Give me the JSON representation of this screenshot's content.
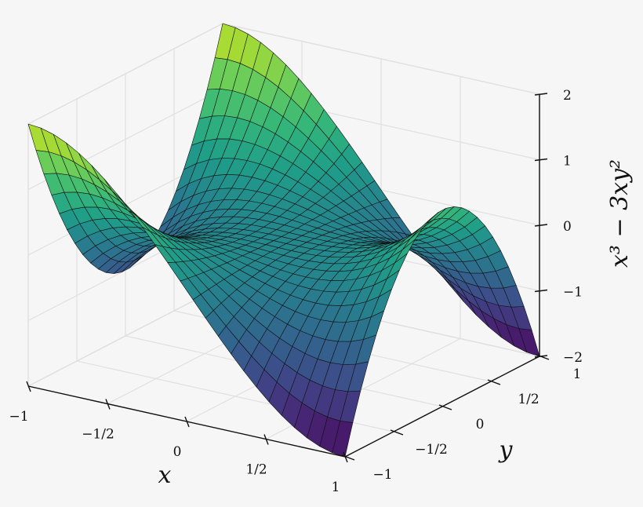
{
  "chart_data": {
    "type": "surface",
    "function": "z = x^3 - 3*x*y^2",
    "x": {
      "min": -1,
      "max": 1,
      "samples": 26
    },
    "y": {
      "min": -1,
      "max": 1,
      "samples": 26
    },
    "zlim": [
      -2,
      2
    ],
    "colormap": "viridis",
    "grid": true,
    "xlabel": "x",
    "ylabel": "y",
    "zlabel": "x³ − 3xy²",
    "x_ticks": [
      {
        "value": -1,
        "label": "−1"
      },
      {
        "value": -0.5,
        "label": "−1/2"
      },
      {
        "value": 0,
        "label": "0"
      },
      {
        "value": 0.5,
        "label": "1/2"
      },
      {
        "value": 1,
        "label": "1"
      }
    ],
    "y_ticks": [
      {
        "value": -1,
        "label": "−1"
      },
      {
        "value": -0.5,
        "label": "−1/2"
      },
      {
        "value": 0,
        "label": "0"
      },
      {
        "value": 0.5,
        "label": "1/2"
      },
      {
        "value": 1,
        "label": "1"
      }
    ],
    "z_ticks": [
      {
        "value": -2,
        "label": "−2"
      },
      {
        "value": -1,
        "label": "−1"
      },
      {
        "value": 0,
        "label": "0"
      },
      {
        "value": 1,
        "label": "1"
      },
      {
        "value": 2,
        "label": "2"
      }
    ]
  }
}
